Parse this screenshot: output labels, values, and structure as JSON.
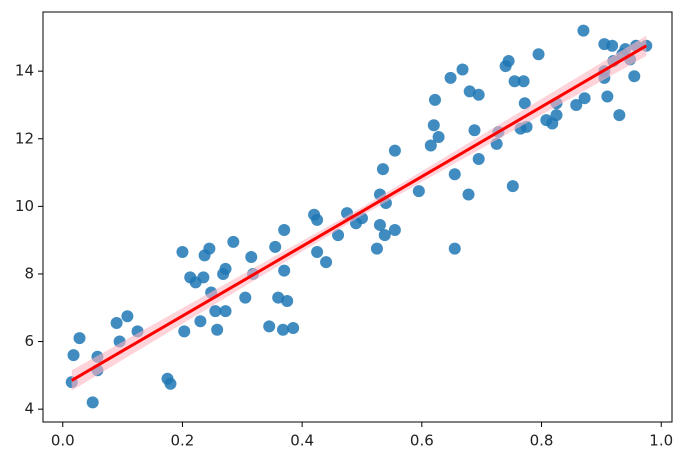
{
  "chart_data": {
    "type": "scatter",
    "xlim": [
      -0.033,
      1.018
    ],
    "ylim": [
      3.62,
      15.75
    ],
    "xticks": [
      {
        "value": 0.0,
        "label": "0.0"
      },
      0.2,
      0.4,
      0.6,
      0.8,
      {
        "value": 1.0,
        "label": "1.0"
      }
    ],
    "yticks": [
      4,
      6,
      8,
      10,
      12,
      14
    ],
    "series": [
      {
        "color": "#1f77b4",
        "x": [
          0.015,
          0.018,
          0.028,
          0.05,
          0.058,
          0.058,
          0.09,
          0.095,
          0.108,
          0.125,
          0.175,
          0.18,
          0.2,
          0.203,
          0.213,
          0.222,
          0.23,
          0.235,
          0.237,
          0.245,
          0.248,
          0.255,
          0.258,
          0.268,
          0.272,
          0.272,
          0.285,
          0.305,
          0.315,
          0.318,
          0.345,
          0.355,
          0.36,
          0.368,
          0.37,
          0.37,
          0.375,
          0.385,
          0.42,
          0.425,
          0.425,
          0.44,
          0.46,
          0.475,
          0.49,
          0.5,
          0.525,
          0.53,
          0.53,
          0.535,
          0.538,
          0.54,
          0.555,
          0.555,
          0.595,
          0.615,
          0.62,
          0.622,
          0.628,
          0.648,
          0.655,
          0.655,
          0.668,
          0.678,
          0.68,
          0.688,
          0.695,
          0.695,
          0.725,
          0.728,
          0.74,
          0.745,
          0.752,
          0.755,
          0.765,
          0.77,
          0.772,
          0.775,
          0.795,
          0.808,
          0.818,
          0.825,
          0.825,
          0.858,
          0.87,
          0.872,
          0.905,
          0.905,
          0.91,
          0.918,
          0.92,
          0.93,
          0.935,
          0.94,
          0.948,
          0.955,
          0.958,
          0.975,
          0.905
        ],
        "values": [
          4.8,
          5.6,
          6.1,
          4.2,
          5.55,
          5.15,
          6.55,
          6.0,
          6.75,
          6.3,
          4.9,
          4.75,
          8.65,
          6.3,
          7.9,
          7.75,
          6.6,
          7.9,
          8.55,
          8.75,
          7.45,
          6.9,
          6.35,
          8.0,
          8.15,
          6.9,
          8.95,
          7.3,
          8.5,
          8.0,
          6.45,
          8.8,
          7.3,
          6.35,
          8.1,
          9.3,
          7.2,
          6.4,
          9.75,
          9.6,
          8.65,
          8.35,
          9.15,
          9.8,
          9.5,
          9.65,
          8.75,
          10.35,
          9.45,
          11.1,
          9.15,
          10.1,
          9.3,
          11.65,
          10.45,
          11.8,
          12.4,
          13.15,
          12.05,
          13.8,
          10.95,
          8.75,
          14.05,
          10.35,
          13.4,
          12.25,
          11.4,
          13.3,
          11.85,
          12.2,
          14.15,
          14.3,
          10.6,
          13.7,
          12.3,
          13.7,
          13.05,
          12.35,
          14.5,
          12.55,
          12.45,
          12.7,
          13.05,
          13.0,
          15.2,
          13.2,
          13.8,
          14.8,
          13.25,
          14.75,
          14.3,
          12.7,
          14.5,
          14.65,
          14.35,
          13.85,
          14.75,
          14.75,
          14.0
        ]
      },
      {
        "color": "#ff0000",
        "band_color": "#ffb6c1",
        "x": [
          0.015,
          0.5,
          0.975
        ],
        "values": [
          4.85,
          9.85,
          14.75
        ],
        "lower": [
          4.55,
          9.73,
          14.45
        ],
        "upper": [
          5.15,
          9.97,
          15.05
        ]
      }
    ]
  }
}
